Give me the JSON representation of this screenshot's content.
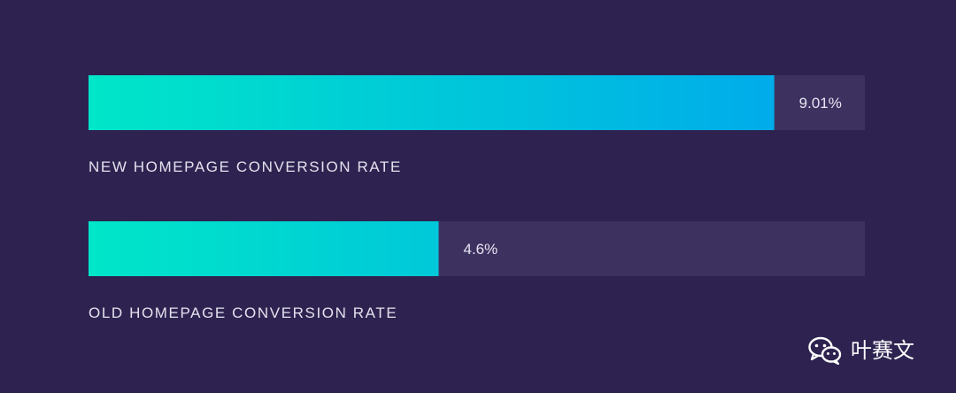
{
  "chart_data": {
    "type": "bar",
    "orientation": "horizontal",
    "categories": [
      "NEW HOMEPAGE CONVERSION RATE",
      "OLD HOMEPAGE CONVERSION RATE"
    ],
    "values": [
      9.01,
      4.6
    ],
    "value_labels": [
      "9.01%",
      "4.6%"
    ],
    "unit": "%",
    "xlim": [
      0,
      10.2
    ],
    "grid": false,
    "colors": {
      "bar_start": "#00e6c8",
      "bar_end": "#00acea",
      "track": "#3d3160",
      "background": "#2e2350"
    }
  },
  "watermark": {
    "icon": "wechat-icon",
    "text": "叶赛文"
  }
}
